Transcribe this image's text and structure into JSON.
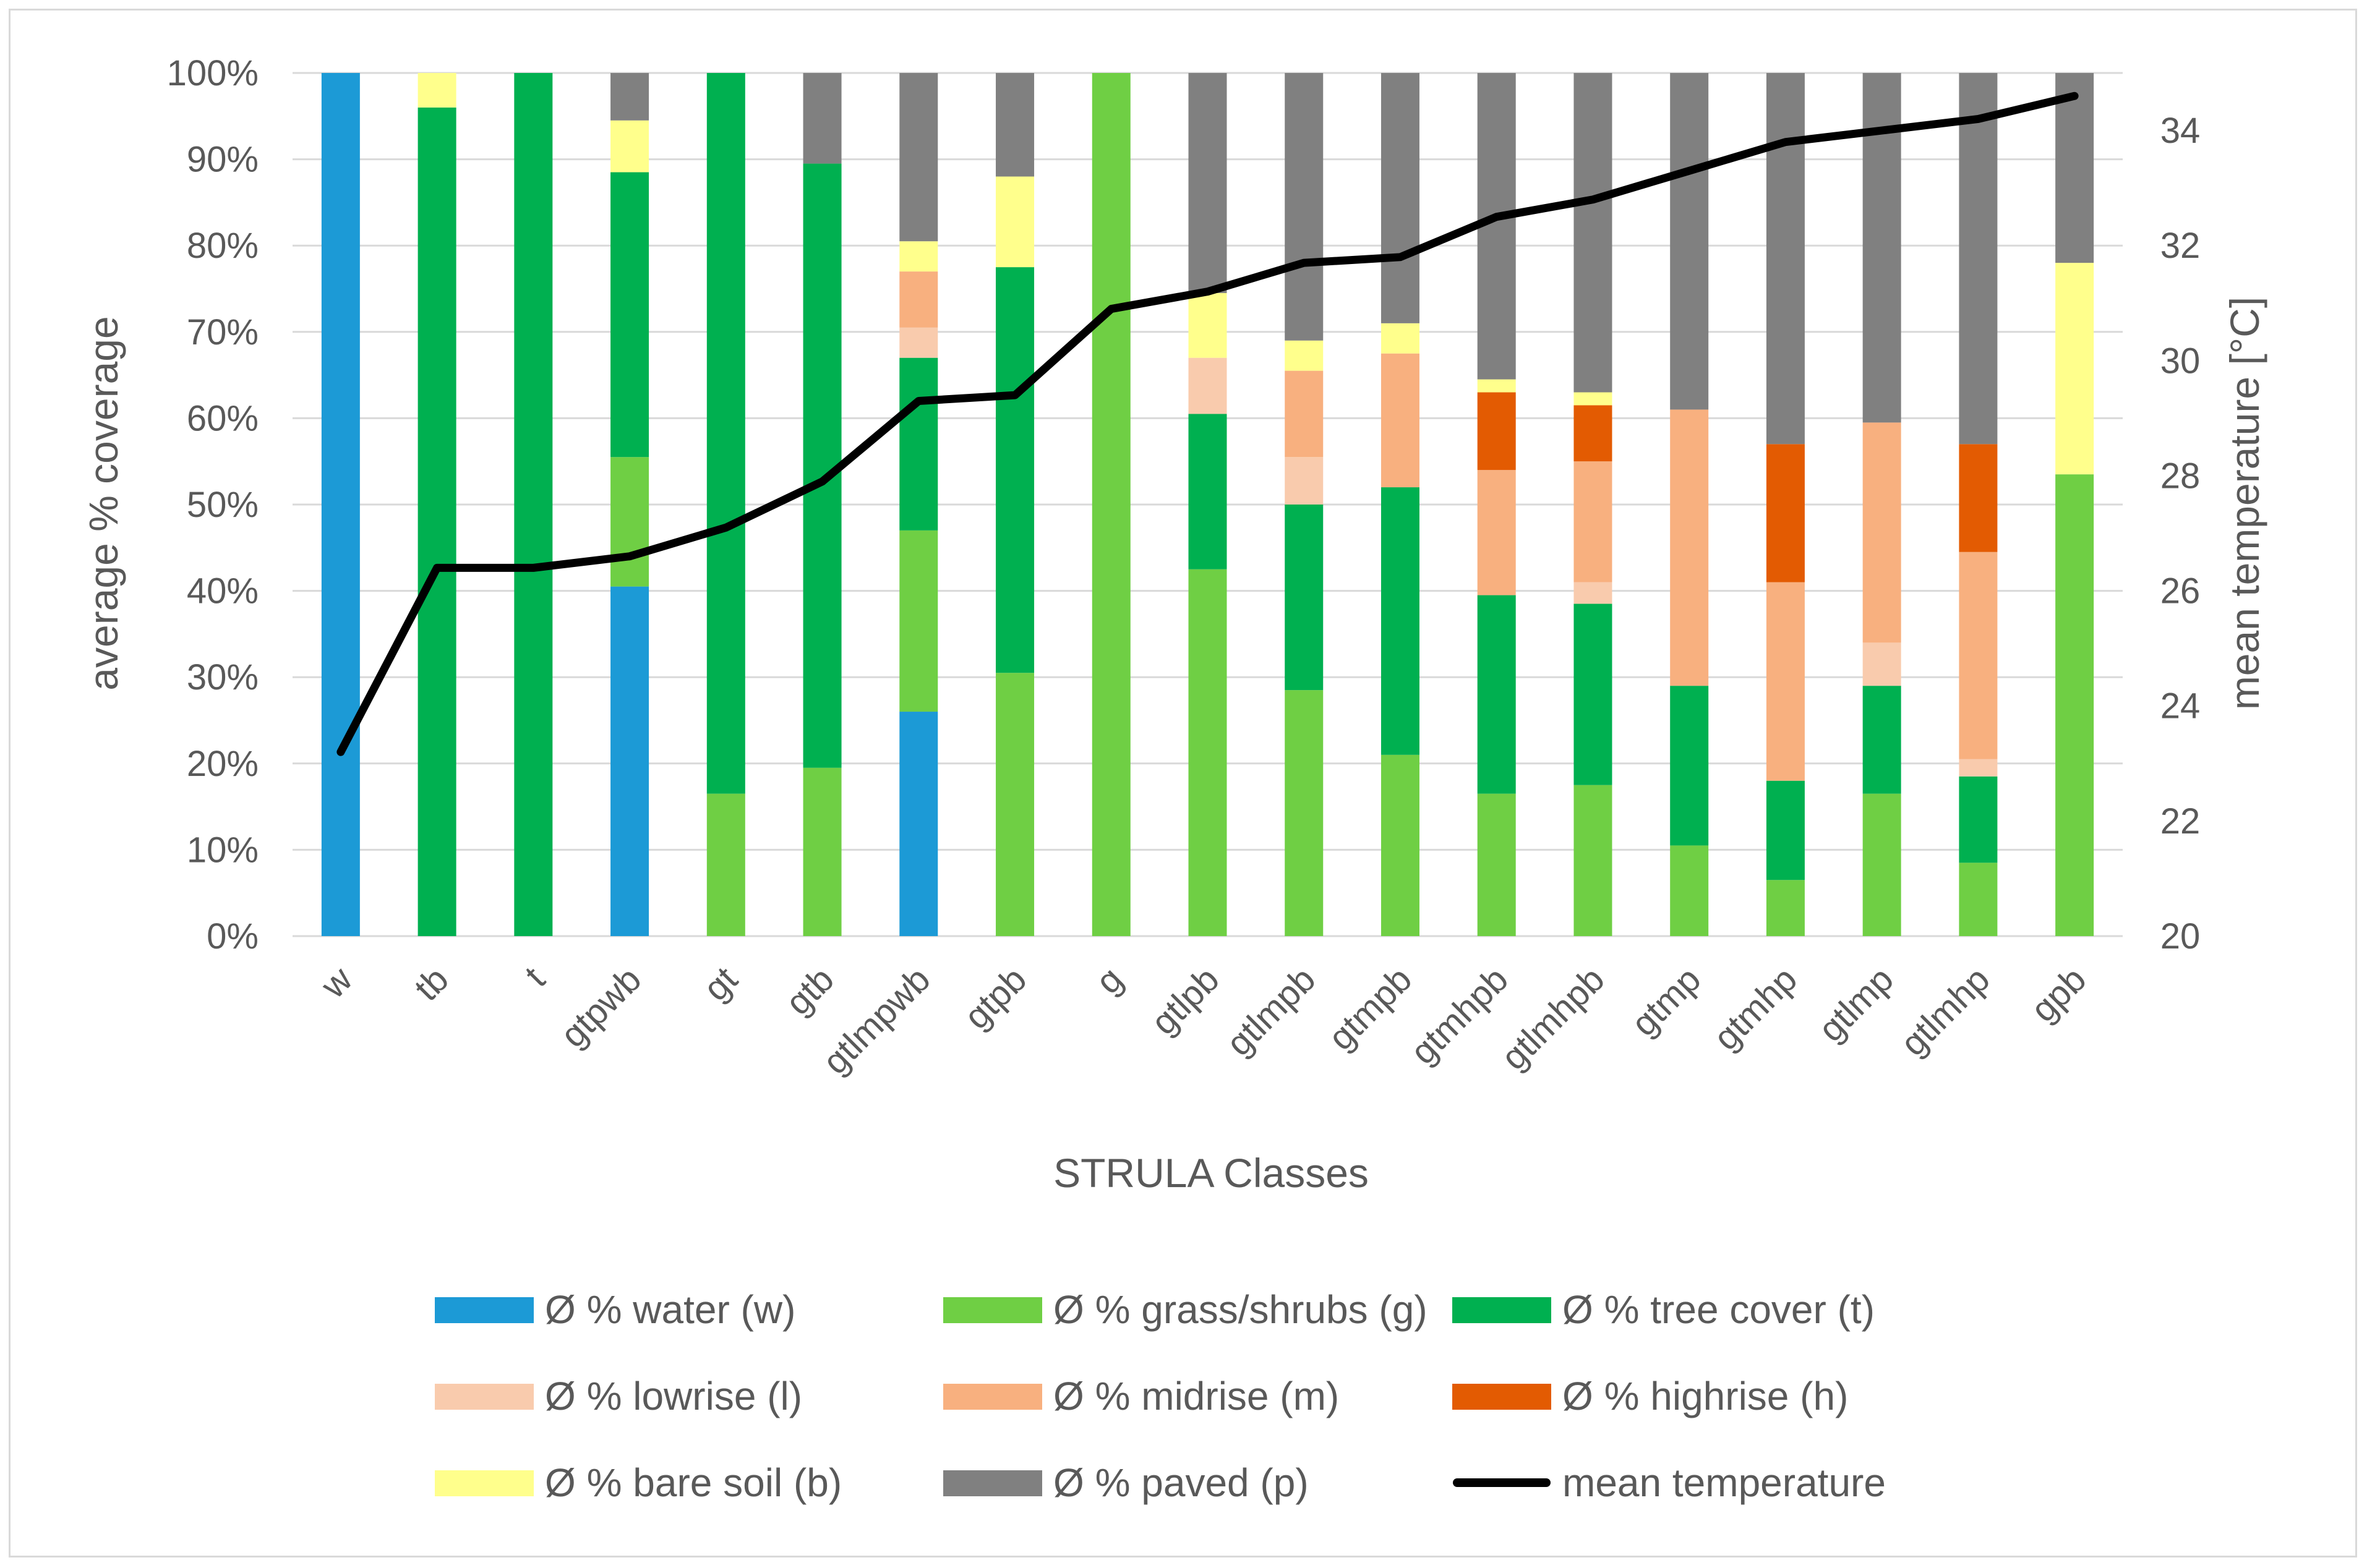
{
  "chart_data": {
    "type": "bar",
    "stacked": true,
    "categories": [
      "w",
      "tb",
      "t",
      "gtpwb",
      "gt",
      "gtb",
      "gtlmpwb",
      "gtpb",
      "g",
      "gtlpb",
      "gtlmpb",
      "gtmpb",
      "gtmhpb",
      "gtlmhpb",
      "gtmp",
      "gtmhp",
      "gtlmp",
      "gtlmhp",
      "gpb"
    ],
    "xlabel": "STRULA Classes",
    "ylabel": "average % coverage",
    "ylabel_right": "mean temperature [°C]",
    "ylim": [
      0,
      100
    ],
    "ylim_right": [
      20,
      35
    ],
    "yticks": [
      "0%",
      "10%",
      "20%",
      "30%",
      "40%",
      "50%",
      "60%",
      "70%",
      "80%",
      "90%",
      "100%"
    ],
    "yticks_right": [
      "20",
      "22",
      "24",
      "26",
      "28",
      "30",
      "32",
      "34"
    ],
    "grid": true,
    "legend_position": "bottom",
    "series": [
      {
        "name": "Ø % water (w)",
        "color": "#1c9ad6",
        "values": [
          100,
          0,
          0,
          40.5,
          0,
          0,
          26,
          0,
          0,
          0,
          0,
          0,
          0,
          0,
          0,
          0,
          0,
          0,
          0
        ]
      },
      {
        "name": "Ø % grass/shrubs (g)",
        "color": "#6fcf44",
        "values": [
          0,
          0,
          0,
          15,
          16.5,
          19.5,
          21,
          30.5,
          100,
          42.5,
          28.5,
          21,
          16.5,
          17.5,
          10.5,
          6.5,
          16.5,
          8.5,
          53.5
        ]
      },
      {
        "name": "Ø % tree cover (t)",
        "color": "#00b050",
        "values": [
          0,
          96,
          100,
          33,
          83.5,
          70,
          20,
          47,
          0,
          18,
          21.5,
          31,
          23,
          21,
          18.5,
          11.5,
          12.5,
          10,
          0
        ]
      },
      {
        "name": "Ø % lowrise (l)",
        "color": "#f9cbad",
        "values": [
          0,
          0,
          0,
          0,
          0,
          0,
          3.5,
          0,
          0,
          6.5,
          5.5,
          0,
          0,
          2.5,
          0,
          0,
          5,
          2,
          0
        ]
      },
      {
        "name": "Ø % midrise (m)",
        "color": "#f8b07f",
        "values": [
          0,
          0,
          0,
          0,
          0,
          0,
          6.5,
          0,
          0,
          0,
          10,
          15.5,
          14.5,
          14,
          32,
          23,
          25.5,
          24,
          0
        ]
      },
      {
        "name": "Ø % highrise (h)",
        "color": "#e35b02",
        "values": [
          0,
          0,
          0,
          0,
          0,
          0,
          0,
          0,
          0,
          0,
          0,
          0,
          9,
          6.5,
          0,
          16,
          0,
          12.5,
          0
        ]
      },
      {
        "name": "Ø % bare soil (b)",
        "color": "#ffff8c",
        "values": [
          0,
          4,
          0,
          6,
          0,
          0,
          3.5,
          10.5,
          0,
          7.5,
          3.5,
          3.5,
          1.5,
          1.5,
          0,
          0,
          0,
          0,
          24.5
        ]
      },
      {
        "name": "Ø % paved (p)",
        "color": "#808080",
        "values": [
          0,
          0,
          0,
          5.5,
          0,
          10.5,
          19.5,
          12,
          0,
          25.5,
          31,
          29,
          35.5,
          37,
          39,
          43,
          40.5,
          43,
          22
        ]
      }
    ],
    "line_series": {
      "name": "mean temperature",
      "color": "#000000",
      "axis": "right",
      "values": [
        23.2,
        26.4,
        26.4,
        26.6,
        27.1,
        27.9,
        29.3,
        29.4,
        30.9,
        31.2,
        31.7,
        31.8,
        32.5,
        32.8,
        33.3,
        33.8,
        34.0,
        34.2,
        34.6
      ]
    }
  }
}
